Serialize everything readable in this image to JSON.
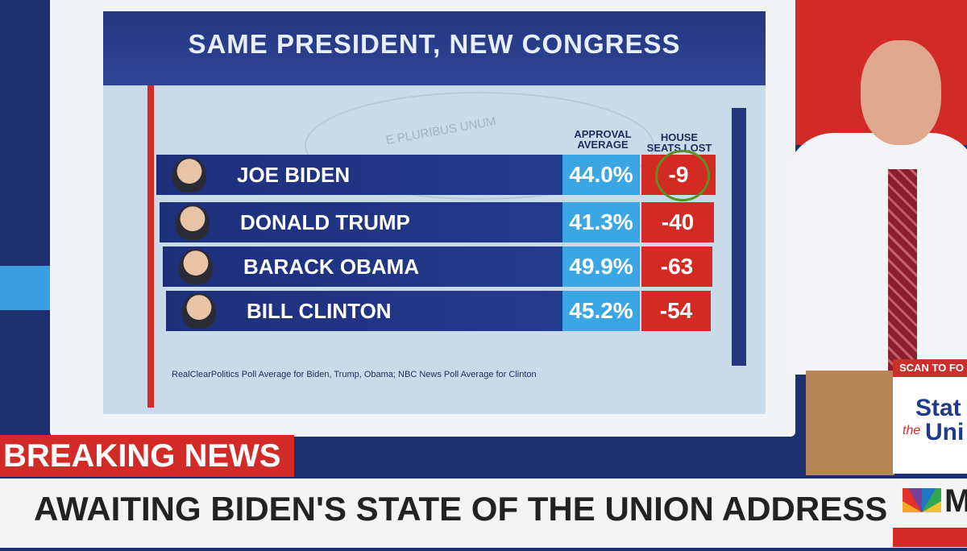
{
  "screen": {
    "title": "SAME PRESIDENT, NEW CONGRESS",
    "seal_text": "E PLURIBUS UNUM",
    "columns": [
      "APPROVAL AVERAGE",
      "HOUSE SEATS LOST"
    ],
    "rows": [
      {
        "name": "JOE BIDEN",
        "approval": "44.0%",
        "seats_lost": -9
      },
      {
        "name": "DONALD TRUMP",
        "approval": "41.3%",
        "seats_lost": -40
      },
      {
        "name": "BARACK OBAMA",
        "approval": "49.9%",
        "seats_lost": -63
      },
      {
        "name": "BILL CLINTON",
        "approval": "45.2%",
        "seats_lost": -54
      }
    ],
    "footnote": "RealClearPolitics Poll Average for Biden, Trump, Obama; NBC News Poll Average for Clinton"
  },
  "lower_third": {
    "banner": "BREAKING NEWS",
    "headline": "AWAITING BIDEN'S STATE OF THE UNION ADDRESS",
    "scan": "SCAN TO FO",
    "logo": [
      "Stat",
      "the",
      "Uni"
    ],
    "network": "M"
  }
}
